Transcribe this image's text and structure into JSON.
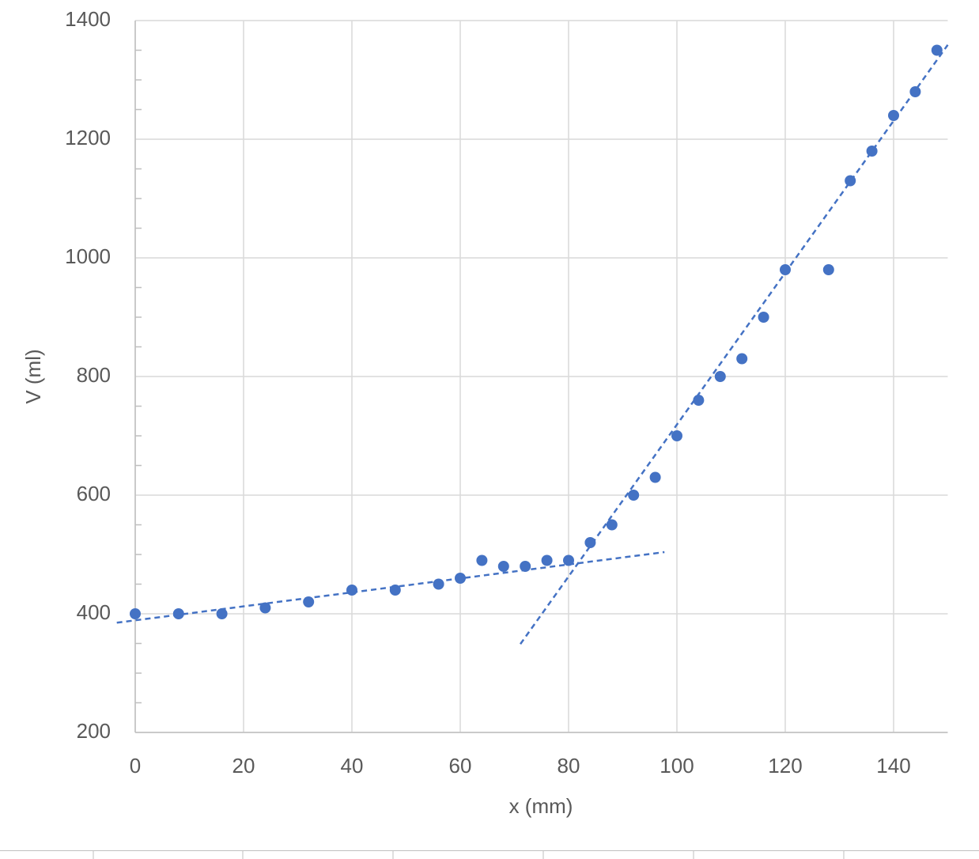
{
  "chart_data": {
    "type": "scatter",
    "x_label": "x (mm)",
    "y_label": "V (ml)",
    "xlim": [
      0,
      150
    ],
    "ylim": [
      200,
      1400
    ],
    "xticks": [
      0,
      20,
      40,
      60,
      80,
      100,
      120,
      140
    ],
    "yticks": [
      200,
      400,
      600,
      800,
      1000,
      1200,
      1400
    ],
    "yminorticks": [
      250,
      300,
      350,
      450,
      500,
      550,
      650,
      700,
      750,
      850,
      900,
      950,
      1050,
      1100,
      1150,
      1250,
      1300,
      1350
    ],
    "grid": true,
    "series": [
      {
        "color": "#4472c4",
        "x": [
          0,
          8,
          16,
          24,
          32,
          40,
          48,
          56,
          60,
          64,
          68,
          72,
          76,
          80,
          84,
          88,
          92,
          96,
          100,
          104,
          108,
          112,
          116,
          120,
          128,
          132,
          136,
          140,
          144,
          148
        ],
        "values": [
          400,
          400,
          400,
          410,
          420,
          440,
          440,
          450,
          460,
          490,
          480,
          480,
          490,
          490,
          520,
          550,
          600,
          630,
          700,
          760,
          800,
          830,
          900,
          980,
          980,
          1130,
          1180,
          1240,
          1280,
          1350
        ]
      }
    ],
    "trendlines": [
      {
        "color": "#4472c4",
        "x": [
          -3.4,
          97.7
        ],
        "values": [
          385,
          504
        ]
      },
      {
        "color": "#4472c4",
        "x": [
          71.1,
          150
        ],
        "values": [
          349,
          1359
        ]
      }
    ]
  }
}
